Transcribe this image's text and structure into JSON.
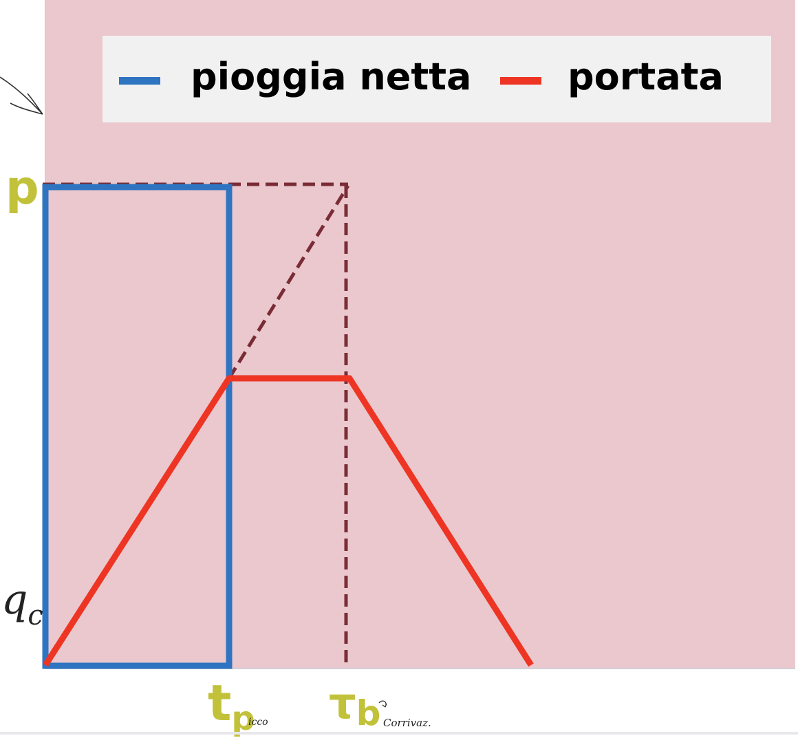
{
  "legend": {
    "items": [
      {
        "label": "pioggia netta",
        "color": "#2f74c0"
      },
      {
        "label": "portata",
        "color": "#ee3524"
      }
    ]
  },
  "axis_labels": {
    "p": "p",
    "qc_main": "q",
    "qc_sub": "c",
    "tp_main": "t",
    "tp_sub": "p",
    "tp_note": "icco",
    "tau_main": "τ",
    "tau_sub": "b",
    "tau_note": "Corrivaz."
  },
  "colors": {
    "plot_bg": "#eac8ce",
    "rain": "#2f74c0",
    "flow": "#ee3524",
    "guide": "#7a2c36",
    "axis_label": "#c2c13a"
  }
}
